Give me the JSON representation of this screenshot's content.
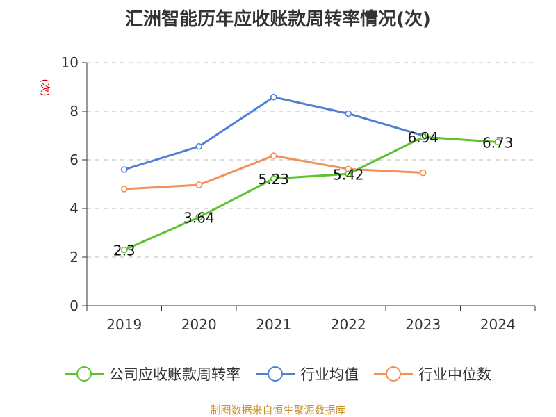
{
  "chart_data": {
    "type": "line",
    "title": "汇洲智能历年应收账款周转率情况(次)",
    "ylabel": "(次)",
    "categories": [
      "2019",
      "2020",
      "2021",
      "2022",
      "2023",
      "2024"
    ],
    "ylim": [
      0,
      10
    ],
    "yticks": [
      0,
      2,
      4,
      6,
      8,
      10
    ],
    "grid": true,
    "legend_position": "bottom",
    "series": [
      {
        "name": "公司应收账款周转率",
        "color": "#5cc22d",
        "values": [
          2.3,
          3.64,
          5.23,
          5.42,
          6.94,
          6.73
        ],
        "labels": [
          "2.3",
          "3.64",
          "5.23",
          "5.42",
          "6.94",
          "6.73"
        ]
      },
      {
        "name": "行业均值",
        "color": "#4f7fd8",
        "values": [
          5.6,
          6.55,
          8.58,
          7.9,
          7.0,
          null
        ]
      },
      {
        "name": "行业中位数",
        "color": "#f2905a",
        "values": [
          4.8,
          4.97,
          6.17,
          5.62,
          5.47,
          null
        ]
      }
    ]
  },
  "source": "制图数据来自恒生聚源数据库",
  "colors": {
    "title": "#333333",
    "ylabel": "#cc0000",
    "source": "#c8902d",
    "grid": "#bbbbbb",
    "axis": "#333333"
  }
}
